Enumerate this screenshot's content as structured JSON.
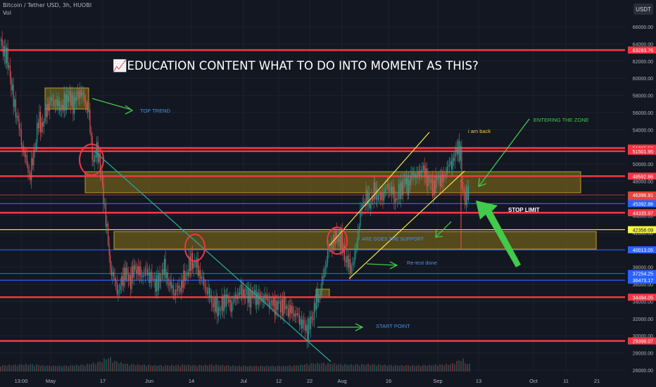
{
  "header": {
    "symbol_line": "Bitcoin / Tether USD, 3h, HUOBI",
    "vol_label": "Vol"
  },
  "chart_data": {
    "type": "candlestick",
    "title": "📈EDUCATION CONTENT WHAT TO DO INTO MOMENT AS THIS?",
    "currency": "USDT",
    "ylim": [
      25500,
      67500
    ],
    "y_ticks": [
      26000,
      28000,
      30000,
      32000,
      34000,
      36000,
      38000,
      40000,
      42000,
      44000,
      46000,
      48000,
      50000,
      52000,
      54000,
      56000,
      58000,
      60000,
      62000,
      64000,
      66000
    ],
    "x_ticks": [
      "13:00",
      "May",
      "17",
      "Jun",
      "14",
      "Jul",
      "12",
      "22",
      "Aug",
      "16",
      "Sep",
      "13",
      "Oct",
      "11",
      "21"
    ],
    "price_path": [
      [
        0,
        64300
      ],
      [
        6,
        63000
      ],
      [
        12,
        61500
      ],
      [
        18,
        57500
      ],
      [
        24,
        55500
      ],
      [
        30,
        52500
      ],
      [
        36,
        50500
      ],
      [
        42,
        48500
      ],
      [
        48,
        51500
      ],
      [
        54,
        55000
      ],
      [
        60,
        54500
      ],
      [
        66,
        56500
      ],
      [
        72,
        57500
      ],
      [
        80,
        57000
      ],
      [
        88,
        56500
      ],
      [
        96,
        58000
      ],
      [
        104,
        57000
      ],
      [
        112,
        58500
      ],
      [
        120,
        57500
      ],
      [
        126,
        55500
      ],
      [
        132,
        50000
      ],
      [
        138,
        52000
      ],
      [
        144,
        48000
      ],
      [
        150,
        43500
      ],
      [
        156,
        38000
      ],
      [
        162,
        36500
      ],
      [
        168,
        35000
      ],
      [
        176,
        37500
      ],
      [
        184,
        36500
      ],
      [
        192,
        38000
      ],
      [
        200,
        37000
      ],
      [
        208,
        37500
      ],
      [
        216,
        36500
      ],
      [
        224,
        36000
      ],
      [
        232,
        38000
      ],
      [
        240,
        36000
      ],
      [
        248,
        35000
      ],
      [
        256,
        35800
      ],
      [
        264,
        37200
      ],
      [
        272,
        38800
      ],
      [
        280,
        38000
      ],
      [
        288,
        36200
      ],
      [
        296,
        34800
      ],
      [
        304,
        33500
      ],
      [
        312,
        33000
      ],
      [
        320,
        34500
      ],
      [
        328,
        33500
      ],
      [
        336,
        34800
      ],
      [
        344,
        35200
      ],
      [
        352,
        34500
      ],
      [
        360,
        34800
      ],
      [
        368,
        34200
      ],
      [
        376,
        34500
      ],
      [
        384,
        33800
      ],
      [
        392,
        33500
      ],
      [
        400,
        33600
      ],
      [
        410,
        33000
      ],
      [
        420,
        32500
      ],
      [
        428,
        31500
      ],
      [
        436,
        30600
      ],
      [
        442,
        31800
      ],
      [
        448,
        34000
      ],
      [
        454,
        35000
      ],
      [
        460,
        37500
      ],
      [
        466,
        40000
      ],
      [
        472,
        41000
      ],
      [
        478,
        41500
      ],
      [
        484,
        41000
      ],
      [
        490,
        39000
      ],
      [
        496,
        38000
      ],
      [
        502,
        38500
      ],
      [
        508,
        42000
      ],
      [
        514,
        45500
      ],
      [
        520,
        46000
      ],
      [
        526,
        45500
      ],
      [
        532,
        47000
      ],
      [
        538,
        46000
      ],
      [
        544,
        46500
      ],
      [
        550,
        47500
      ],
      [
        556,
        46800
      ],
      [
        562,
        45800
      ],
      [
        568,
        47000
      ],
      [
        574,
        48000
      ],
      [
        580,
        47500
      ],
      [
        586,
        49000
      ],
      [
        592,
        48500
      ],
      [
        598,
        49500
      ],
      [
        604,
        48800
      ],
      [
        610,
        47800
      ],
      [
        616,
        47300
      ],
      [
        622,
        48500
      ],
      [
        628,
        48000
      ],
      [
        634,
        49500
      ],
      [
        640,
        50000
      ],
      [
        646,
        51000
      ],
      [
        650,
        52200
      ],
      [
        654,
        51000
      ],
      [
        656,
        46800
      ],
      [
        660,
        46300
      ],
      [
        666,
        46600
      ]
    ],
    "volume_bars": [
      [
        0,
        0.3
      ],
      [
        20,
        0.35
      ],
      [
        40,
        0.4
      ],
      [
        60,
        0.3
      ],
      [
        80,
        0.25
      ],
      [
        100,
        0.3
      ],
      [
        120,
        0.35
      ],
      [
        140,
        0.6
      ],
      [
        150,
        0.9
      ],
      [
        155,
        1.0
      ],
      [
        160,
        0.7
      ],
      [
        180,
        0.4
      ],
      [
        200,
        0.35
      ],
      [
        220,
        0.3
      ],
      [
        240,
        0.3
      ],
      [
        260,
        0.35
      ],
      [
        280,
        0.3
      ],
      [
        300,
        0.35
      ],
      [
        320,
        0.3
      ],
      [
        340,
        0.25
      ],
      [
        360,
        0.25
      ],
      [
        380,
        0.25
      ],
      [
        400,
        0.25
      ],
      [
        420,
        0.3
      ],
      [
        440,
        0.45
      ],
      [
        460,
        0.5
      ],
      [
        480,
        0.4
      ],
      [
        500,
        0.35
      ],
      [
        520,
        0.4
      ],
      [
        540,
        0.35
      ],
      [
        560,
        0.3
      ],
      [
        580,
        0.3
      ],
      [
        600,
        0.3
      ],
      [
        620,
        0.35
      ],
      [
        640,
        0.4
      ],
      [
        650,
        0.7
      ],
      [
        656,
        0.9
      ],
      [
        662,
        0.4
      ]
    ],
    "horizontal_levels": [
      {
        "price": 63283.76,
        "color": "#f23645",
        "label": "63283.76"
      },
      {
        "price": 51865.58,
        "color": "#f23645",
        "label": "51865.58"
      },
      {
        "price": 51501.95,
        "color": "#f23645",
        "label": "51501.95"
      },
      {
        "price": 48592.86,
        "color": "#f23645",
        "label": "48592.86"
      },
      {
        "price": 46396.91,
        "color": "#e0473e",
        "label": "46396.91",
        "sub": "41:06",
        "current": true
      },
      {
        "price": 45392.86,
        "color": "#2962ff",
        "label": "45392.86"
      },
      {
        "price": 44335.97,
        "color": "#f23645",
        "label": "44335.97"
      },
      {
        "price": 42358.09,
        "color": "#f5f542",
        "label": "42358.09",
        "text_color": "#131722"
      },
      {
        "price": 40013.05,
        "color": "#2962ff",
        "label": "40013.05"
      },
      {
        "price": 37254.25,
        "color": "#2962ff",
        "label": "37254.25"
      },
      {
        "price": 36473.17,
        "color": "#2962ff",
        "label": "36473.17"
      },
      {
        "price": 34494.05,
        "color": "#f23645",
        "label": "34494.05"
      },
      {
        "price": 29398.07,
        "color": "#f23645",
        "label": "29398.07"
      }
    ],
    "annotations": {
      "top_trend": "TOP TREND",
      "entering_zone": "ENTERING THE ZONE",
      "i_am_back": "i am back",
      "stop_limit": "STOP LIMIT",
      "support": "ARE GOES THE SUPPORT",
      "retest": "Re-test done",
      "start_point": "START POINT"
    },
    "colors": {
      "background": "#131722",
      "up": "#26a69a",
      "down": "#ef5350",
      "zone": "#7c6a1a",
      "accent_green": "#43c94b"
    }
  }
}
